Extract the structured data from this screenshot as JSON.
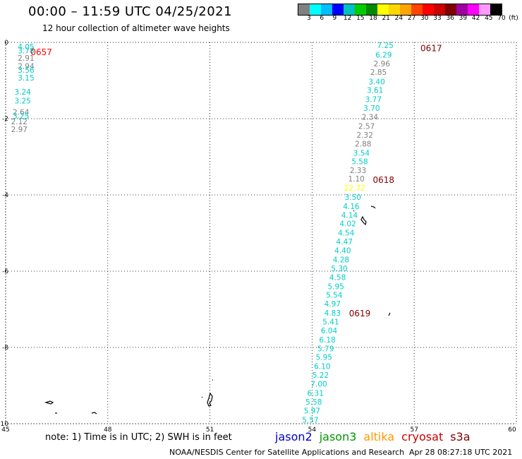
{
  "header": {
    "title": "00:00 – 11:59 UTC 04/25/2021",
    "subtitle": "12 hour collection of altimeter wave heights"
  },
  "colorbar": {
    "colors": [
      "#808080",
      "#00ffff",
      "#00bfff",
      "#0000ff",
      "#00c0c0",
      "#00cc00",
      "#008800",
      "#ffff00",
      "#ffd700",
      "#ffa500",
      "#ff4500",
      "#ff0000",
      "#cc0000",
      "#800000",
      "#a000a0",
      "#ff00ff",
      "#ff99ff",
      "#000000"
    ],
    "ticks": [
      "3",
      "6",
      "9",
      "12",
      "15",
      "18",
      "21",
      "24",
      "27",
      "30",
      "33",
      "36",
      "39",
      "42",
      "45",
      "70"
    ],
    "unit": "(ft)"
  },
  "map": {
    "lon_range": [
      45,
      60
    ],
    "lat_range": [
      -10,
      0
    ],
    "x_ticks": [
      "45",
      "48",
      "51",
      "54",
      "57",
      "60"
    ],
    "y_ticks": [
      "0",
      "-2",
      "-4",
      "-6",
      "-8",
      "-10"
    ],
    "grid": true
  },
  "pass_labels": [
    {
      "text": "0657",
      "color": "#ff0000",
      "lon": 46.05,
      "lat": -0.15
    },
    {
      "text": "0617",
      "color": "#800000",
      "lon": 57.5,
      "lat": -0.05
    },
    {
      "text": "0618",
      "color": "#800000",
      "lon": 56.1,
      "lat": -3.5
    },
    {
      "text": "0619",
      "color": "#800000",
      "lon": 55.4,
      "lat": -7.0
    }
  ],
  "tracks": [
    {
      "name": "left",
      "points": [
        {
          "v": "4.05",
          "lon": 45.6,
          "lat": -0.04,
          "c": "#00cccc"
        },
        {
          "v": "3.78",
          "lon": 45.6,
          "lat": -0.14,
          "c": "#00cccc"
        },
        {
          "v": "2.91",
          "lon": 45.6,
          "lat": -0.33,
          "c": "#808080"
        },
        {
          "v": "2.94",
          "lon": 45.6,
          "lat": -0.55,
          "c": "#808080"
        },
        {
          "v": "3.56",
          "lon": 45.6,
          "lat": -0.65,
          "c": "#00cccc"
        },
        {
          "v": "3.15",
          "lon": 45.6,
          "lat": -0.85,
          "c": "#00cccc"
        },
        {
          "v": "3.24",
          "lon": 45.5,
          "lat": -1.22,
          "c": "#00cccc"
        },
        {
          "v": "3.25",
          "lon": 45.5,
          "lat": -1.45,
          "c": "#00cccc"
        },
        {
          "v": "2.64",
          "lon": 45.45,
          "lat": -1.75,
          "c": "#808080"
        },
        {
          "v": "3.25",
          "lon": 45.45,
          "lat": -1.85,
          "c": "#00cccc"
        },
        {
          "v": "2.12",
          "lon": 45.4,
          "lat": -2.0,
          "c": "#808080"
        },
        {
          "v": "2.97",
          "lon": 45.4,
          "lat": -2.2,
          "c": "#808080"
        }
      ]
    },
    {
      "name": "right",
      "points": [
        {
          "v": "7.25",
          "lon": 56.15,
          "lat": 0.0,
          "c": "#00cccc"
        },
        {
          "v": "6.29",
          "lon": 56.1,
          "lat": -0.25,
          "c": "#00cccc"
        },
        {
          "v": "2.96",
          "lon": 56.05,
          "lat": -0.48,
          "c": "#808080"
        },
        {
          "v": "2.85",
          "lon": 55.95,
          "lat": -0.7,
          "c": "#808080"
        },
        {
          "v": "3.40",
          "lon": 55.9,
          "lat": -0.95,
          "c": "#00cccc"
        },
        {
          "v": "3.61",
          "lon": 55.85,
          "lat": -1.18,
          "c": "#00cccc"
        },
        {
          "v": "3.77",
          "lon": 55.8,
          "lat": -1.42,
          "c": "#00cccc"
        },
        {
          "v": "3.70",
          "lon": 55.75,
          "lat": -1.65,
          "c": "#00cccc"
        },
        {
          "v": "2.34",
          "lon": 55.7,
          "lat": -1.88,
          "c": "#808080"
        },
        {
          "v": "2.57",
          "lon": 55.6,
          "lat": -2.12,
          "c": "#808080"
        },
        {
          "v": "2.32",
          "lon": 55.55,
          "lat": -2.35,
          "c": "#808080"
        },
        {
          "v": "2.88",
          "lon": 55.5,
          "lat": -2.58,
          "c": "#808080"
        },
        {
          "v": "3.54",
          "lon": 55.45,
          "lat": -2.82,
          "c": "#00cccc"
        },
        {
          "v": "5.58",
          "lon": 55.4,
          "lat": -3.05,
          "c": "#00cccc"
        },
        {
          "v": "2.33",
          "lon": 55.35,
          "lat": -3.28,
          "c": "#808080"
        },
        {
          "v": "1.10",
          "lon": 55.3,
          "lat": -3.5,
          "c": "#808080"
        },
        {
          "v": "22.72",
          "lon": 55.25,
          "lat": -3.74,
          "c": "#ffff00"
        },
        {
          "v": "3.50",
          "lon": 55.2,
          "lat": -3.98,
          "c": "#00cccc"
        },
        {
          "v": "4.16",
          "lon": 55.15,
          "lat": -4.22,
          "c": "#00cccc"
        },
        {
          "v": "4.14",
          "lon": 55.1,
          "lat": -4.45,
          "c": "#00cccc"
        },
        {
          "v": "4.02",
          "lon": 55.05,
          "lat": -4.68,
          "c": "#00cccc"
        },
        {
          "v": "4.54",
          "lon": 55.0,
          "lat": -4.92,
          "c": "#00cccc"
        },
        {
          "v": "4.47",
          "lon": 54.95,
          "lat": -5.15,
          "c": "#00cccc"
        },
        {
          "v": "4.40",
          "lon": 54.9,
          "lat": -5.38,
          "c": "#00cccc"
        },
        {
          "v": "4.28",
          "lon": 54.85,
          "lat": -5.62,
          "c": "#00cccc"
        },
        {
          "v": "5.30",
          "lon": 54.8,
          "lat": -5.85,
          "c": "#00cccc"
        },
        {
          "v": "4.58",
          "lon": 54.75,
          "lat": -6.08,
          "c": "#00cccc"
        },
        {
          "v": "5.95",
          "lon": 54.7,
          "lat": -6.32,
          "c": "#00cccc"
        },
        {
          "v": "5.54",
          "lon": 54.65,
          "lat": -6.55,
          "c": "#00cccc"
        },
        {
          "v": "4.97",
          "lon": 54.6,
          "lat": -6.78,
          "c": "#00cccc"
        },
        {
          "v": "4.83",
          "lon": 54.6,
          "lat": -7.02,
          "c": "#00cccc"
        },
        {
          "v": "5.41",
          "lon": 54.55,
          "lat": -7.25,
          "c": "#00cccc"
        },
        {
          "v": "6.04",
          "lon": 54.5,
          "lat": -7.48,
          "c": "#00cccc"
        },
        {
          "v": "6.18",
          "lon": 54.45,
          "lat": -7.72,
          "c": "#00cccc"
        },
        {
          "v": "5.79",
          "lon": 54.4,
          "lat": -7.95,
          "c": "#00cccc"
        },
        {
          "v": "5.95",
          "lon": 54.35,
          "lat": -8.18,
          "c": "#00cccc"
        },
        {
          "v": "6.10",
          "lon": 54.3,
          "lat": -8.42,
          "c": "#00cccc"
        },
        {
          "v": "5.22",
          "lon": 54.25,
          "lat": -8.65,
          "c": "#00cccc"
        },
        {
          "v": "7.00",
          "lon": 54.2,
          "lat": -8.88,
          "c": "#00cccc"
        },
        {
          "v": "6.31",
          "lon": 54.1,
          "lat": -9.12,
          "c": "#00cccc"
        },
        {
          "v": "5.58",
          "lon": 54.05,
          "lat": -9.35,
          "c": "#00cccc"
        },
        {
          "v": "5.97",
          "lon": 54.0,
          "lat": -9.58,
          "c": "#00cccc"
        },
        {
          "v": "5.57",
          "lon": 53.95,
          "lat": -9.82,
          "c": "#00cccc"
        }
      ]
    }
  ],
  "footer": {
    "note": "note: 1) Time is in UTC; 2) SWH is in feet",
    "legend": [
      {
        "label": "jason2",
        "color": "#0000cc"
      },
      {
        "label": "jason3",
        "color": "#009900"
      },
      {
        "label": "altika",
        "color": "#ff9900"
      },
      {
        "label": "cryosat",
        "color": "#cc0000"
      },
      {
        "label": "s3a",
        "color": "#800000"
      }
    ],
    "credit": "NOAA/NESDIS Center for Satellite Applications and Research",
    "timestamp": "Apr 28 08:27:18 UTC 2021"
  }
}
